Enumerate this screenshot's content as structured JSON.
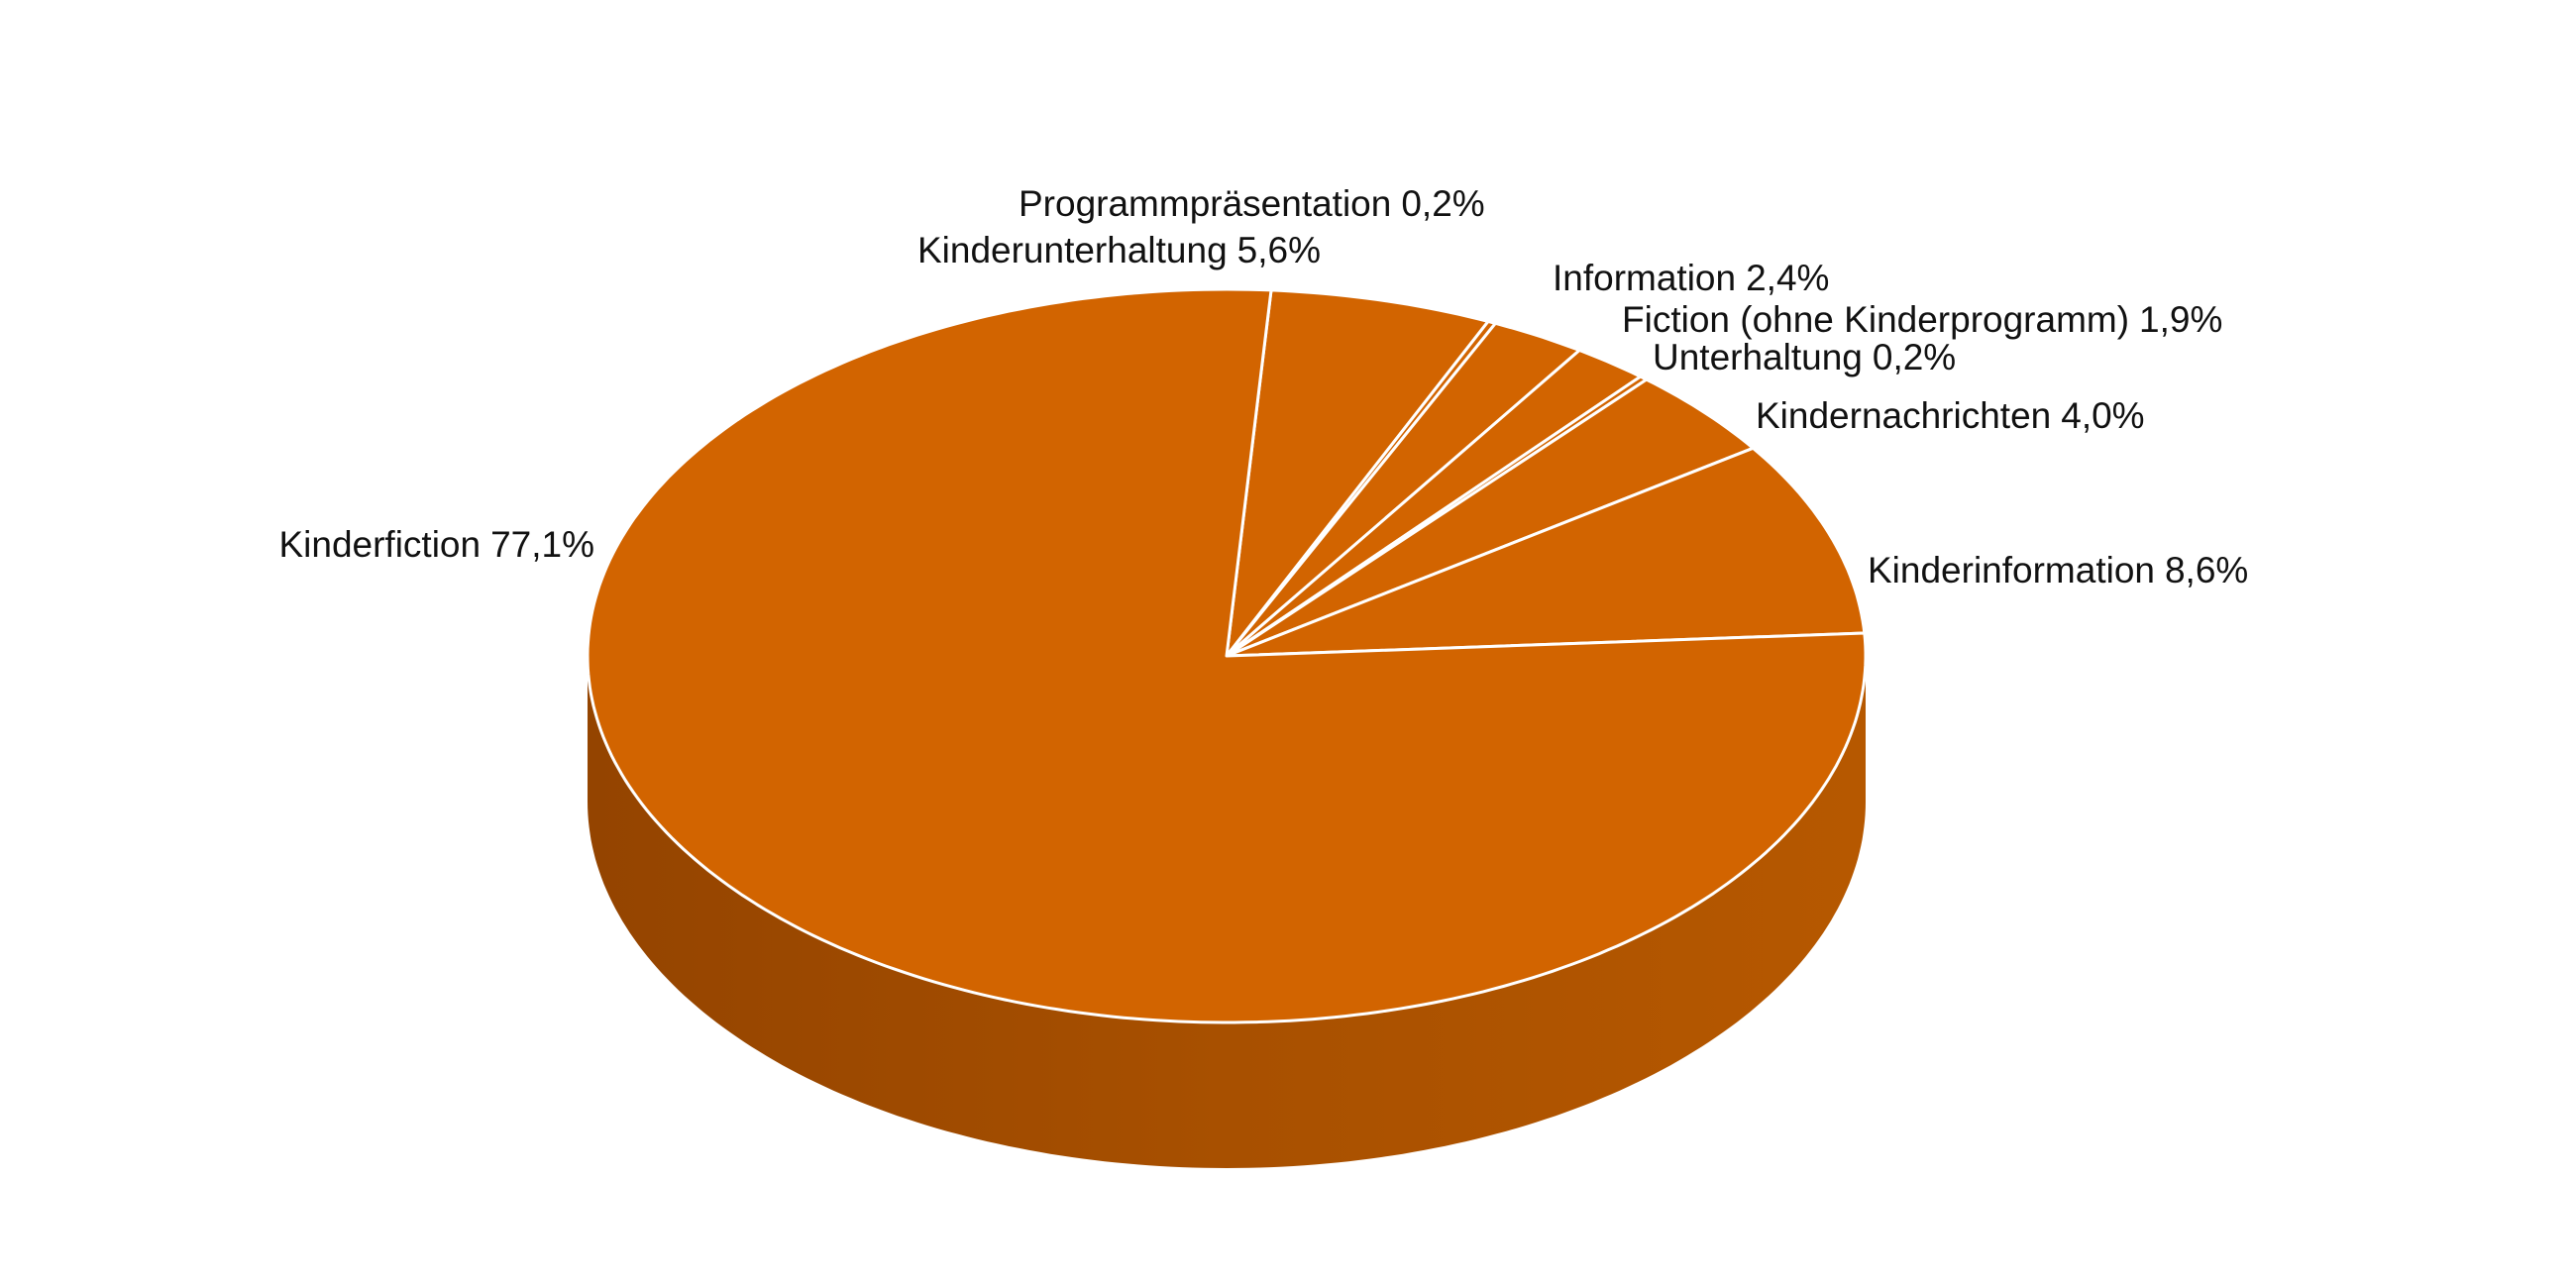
{
  "chart_data": {
    "type": "pie3d",
    "categories": [
      "Kinderunterhaltung",
      "Programmpräsentation",
      "Information",
      "Fiction (ohne Kinderprogramm)",
      "Unterhaltung",
      "Kindernachrichten",
      "Kinderinformation",
      "Kinderfiction"
    ],
    "values": [
      5.6,
      0.2,
      2.4,
      1.9,
      0.2,
      4.0,
      8.6,
      77.1
    ],
    "value_labels": [
      "5,6%",
      "0,2%",
      "2,4%",
      "1,9%",
      "0,2%",
      "4,0%",
      "8,6%",
      "77,1%"
    ],
    "color": "#d26400"
  }
}
